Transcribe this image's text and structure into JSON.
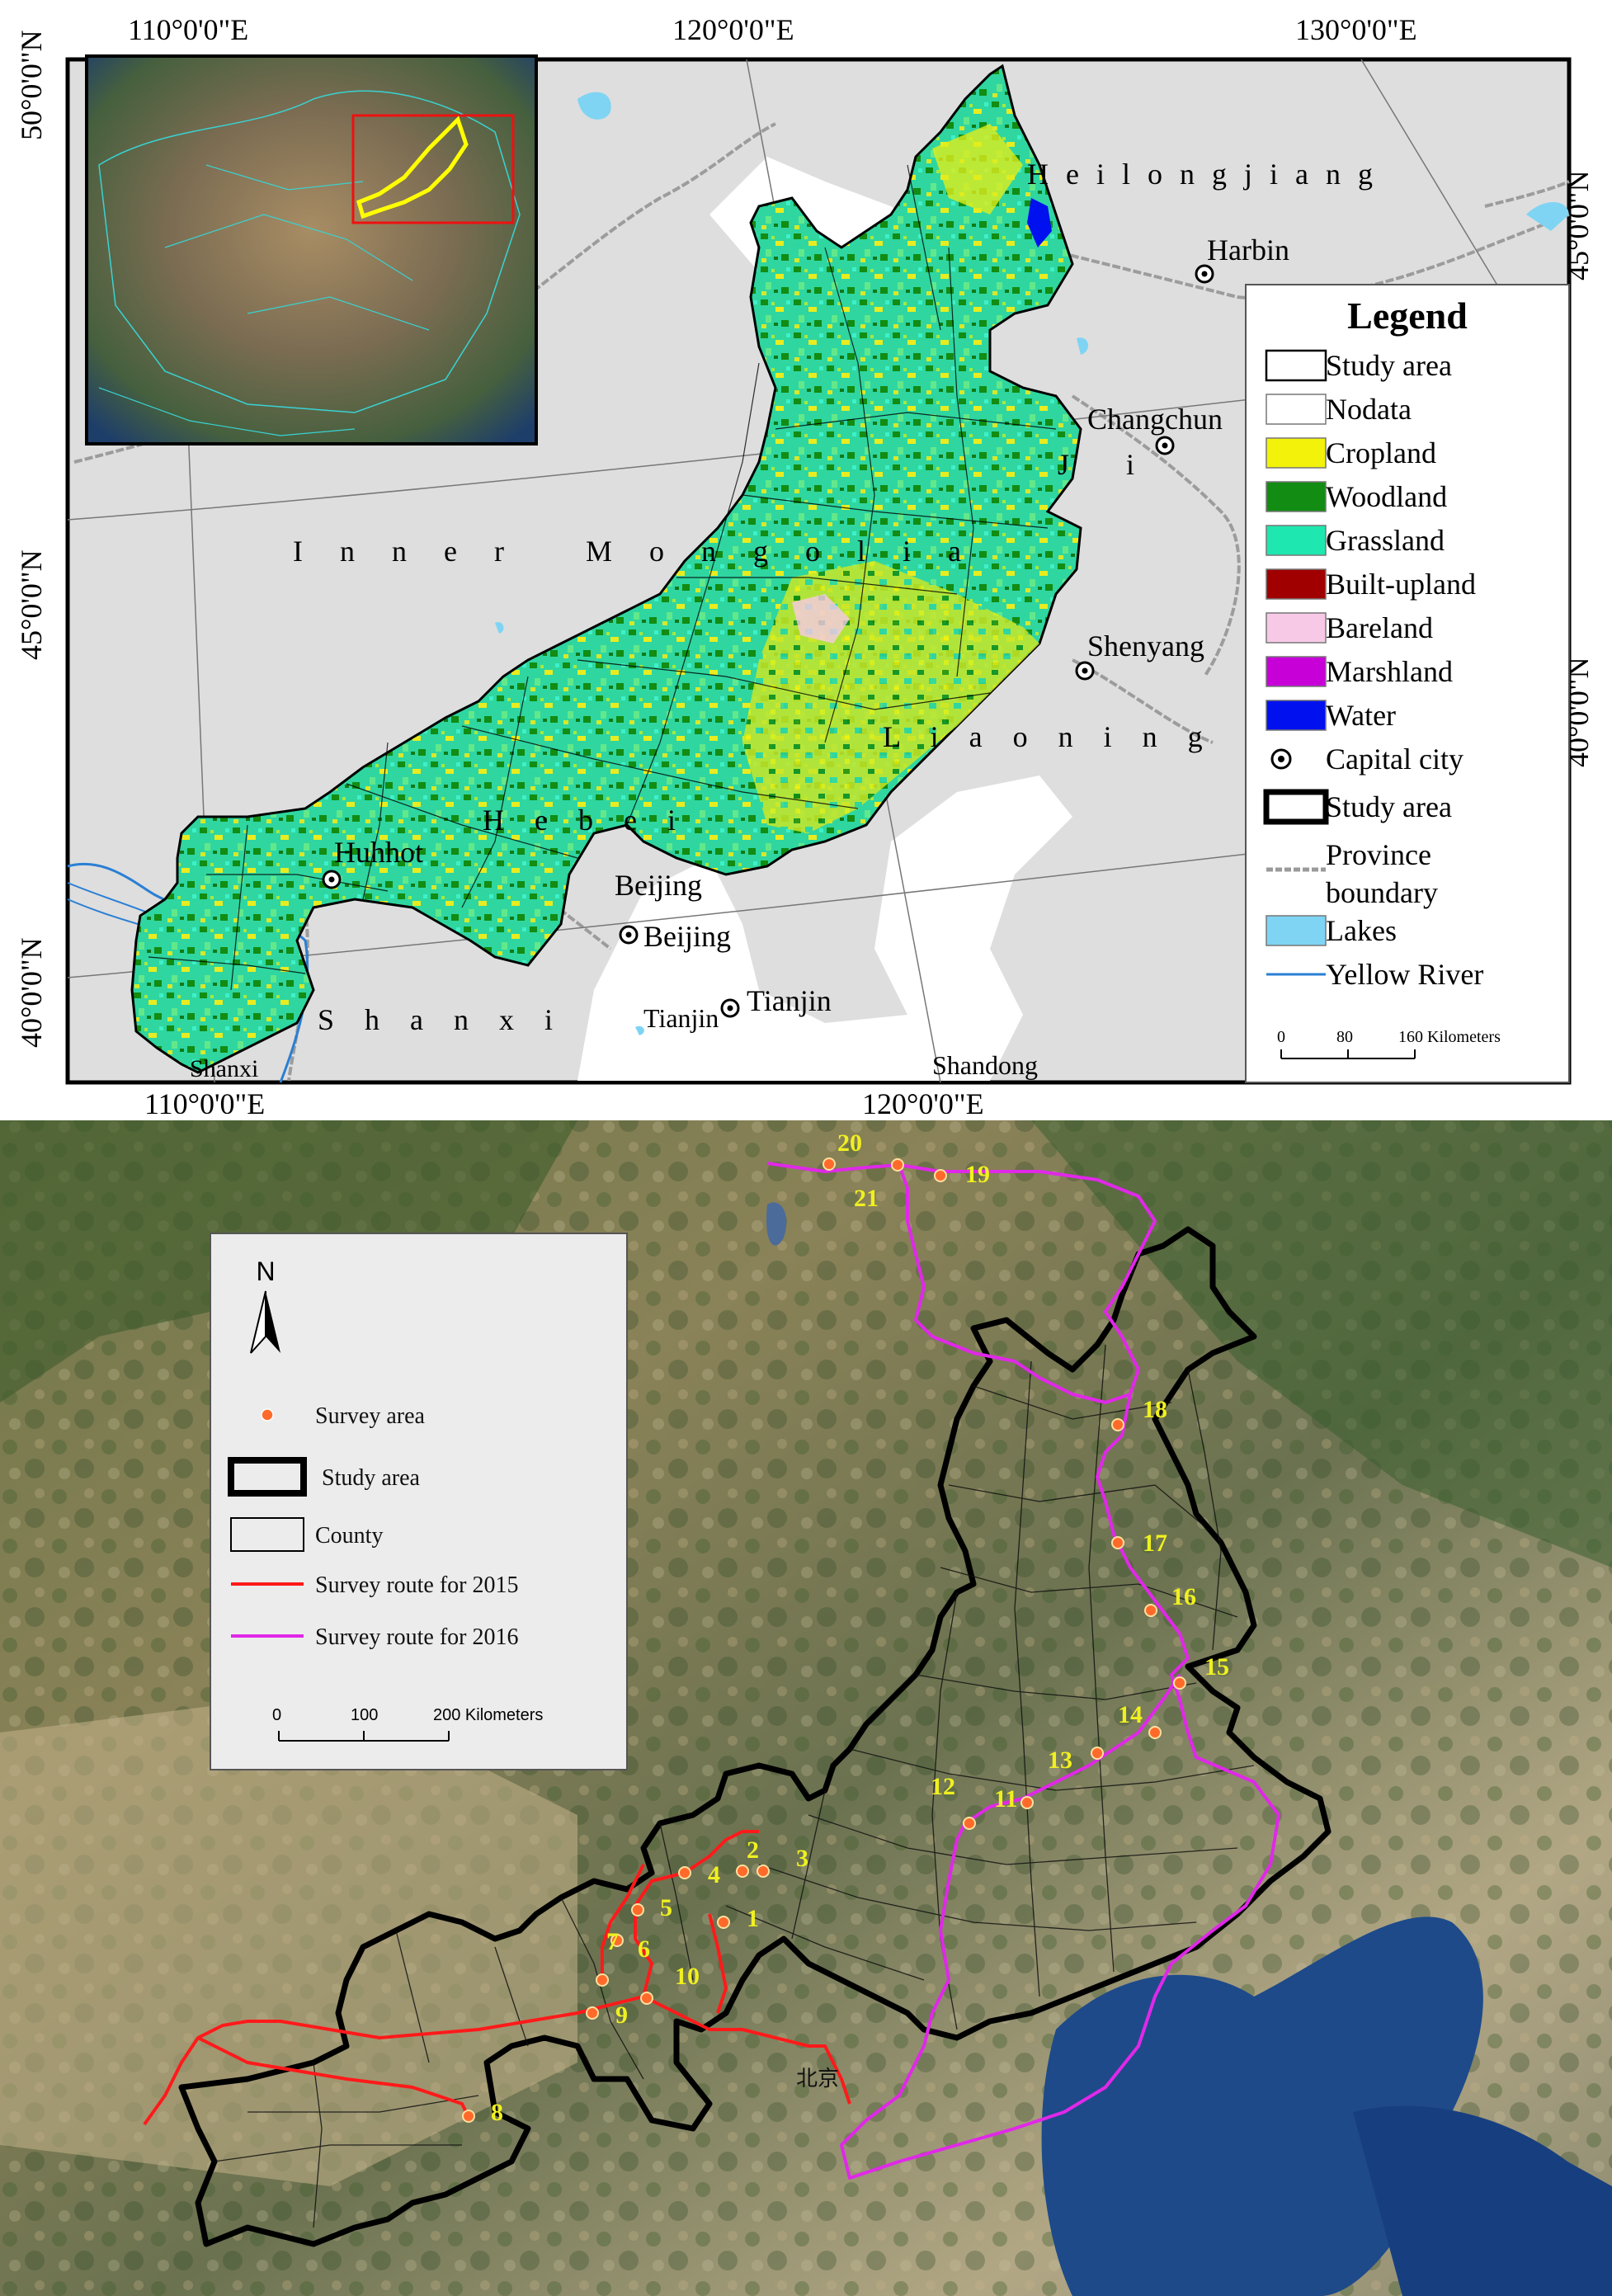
{
  "top_map": {
    "graticule": {
      "top_labels": [
        "110°0'0\"E",
        "120°0'0\"E",
        "130°0'0\"E"
      ],
      "bottom_labels": [
        "110°0'0\"E",
        "120°0'0\"E"
      ],
      "left_labels": [
        "50°0'0\"N",
        "45°0'0\"N",
        "40°0'0\"N"
      ],
      "right_labels": [
        "45°0'0\"N",
        "40°0'0\"N"
      ]
    },
    "place_labels": {
      "heilongjiang": "H e i l o n g j i a n g",
      "harbin": "Harbin",
      "changchun": "Changchun",
      "jilin": "J i",
      "inner_mongolia": "I n n e r   M o n g o l i a",
      "shenyang": "Shenyang",
      "liaoning": "L i a o n i n g",
      "hebei": "H e b e i",
      "huhhot": "Huhhot",
      "beijing_region": "Beijing",
      "beijing_city": "Beijing",
      "tianjin_region": "Tianjin",
      "tianjin_city": "Tianjin",
      "shanxi": "S h a n x i",
      "shanxi_small": "Shanxi",
      "shandong": "Shandong"
    },
    "legend": {
      "title": "Legend",
      "items": [
        {
          "label": "Study area",
          "type": "outline-thin",
          "color": "#000000"
        },
        {
          "label": "Nodata",
          "type": "fill",
          "color": "#ffffff"
        },
        {
          "label": "Cropland",
          "type": "fill",
          "color": "#f2f20a"
        },
        {
          "label": "Woodland",
          "type": "fill",
          "color": "#128c12"
        },
        {
          "label": "Grassland",
          "type": "fill",
          "color": "#1ee8b0"
        },
        {
          "label": "Built-upland",
          "type": "fill",
          "color": "#a00000"
        },
        {
          "label": "Bareland",
          "type": "fill",
          "color": "#f7c9e6"
        },
        {
          "label": "Marshland",
          "type": "fill",
          "color": "#c800d8"
        },
        {
          "label": "Water",
          "type": "fill",
          "color": "#0010ee"
        },
        {
          "label": "Capital city",
          "type": "capital-symbol",
          "color": "#000000"
        },
        {
          "label": "Study area",
          "type": "outline-thick",
          "color": "#000000"
        },
        {
          "label": "Province",
          "label2": "boundary",
          "type": "province-line",
          "color": "#9a9a9a"
        },
        {
          "label": "Lakes",
          "type": "fill",
          "color": "#7fd4f4"
        },
        {
          "label": "Yellow River",
          "type": "river-line",
          "color": "#2a7fd4"
        }
      ],
      "scale": {
        "ticks": [
          "0",
          "80",
          "160 Kilometers"
        ]
      }
    }
  },
  "bottom_map": {
    "legend": {
      "north": "N",
      "items": [
        {
          "label": "Survey area",
          "type": "dot",
          "color": "#ff6a2a"
        },
        {
          "label": "Study area",
          "type": "outline-thick",
          "color": "#000000"
        },
        {
          "label": "County",
          "type": "outline-thin",
          "color": "#000000"
        },
        {
          "label": "Survey route for 2015",
          "type": "line",
          "color": "#ff1a1a"
        },
        {
          "label": "Survey route for 2016",
          "type": "line",
          "color": "#e028e8"
        }
      ],
      "scale": {
        "ticks": [
          "0",
          "100",
          "200 Kilometers"
        ]
      }
    },
    "beijing_label": "北京",
    "survey_sites": [
      "1",
      "2",
      "3",
      "4",
      "5",
      "6",
      "7",
      "8",
      "9",
      "10",
      "11",
      "12",
      "13",
      "14",
      "15",
      "16",
      "17",
      "18",
      "19",
      "20",
      "21"
    ]
  }
}
